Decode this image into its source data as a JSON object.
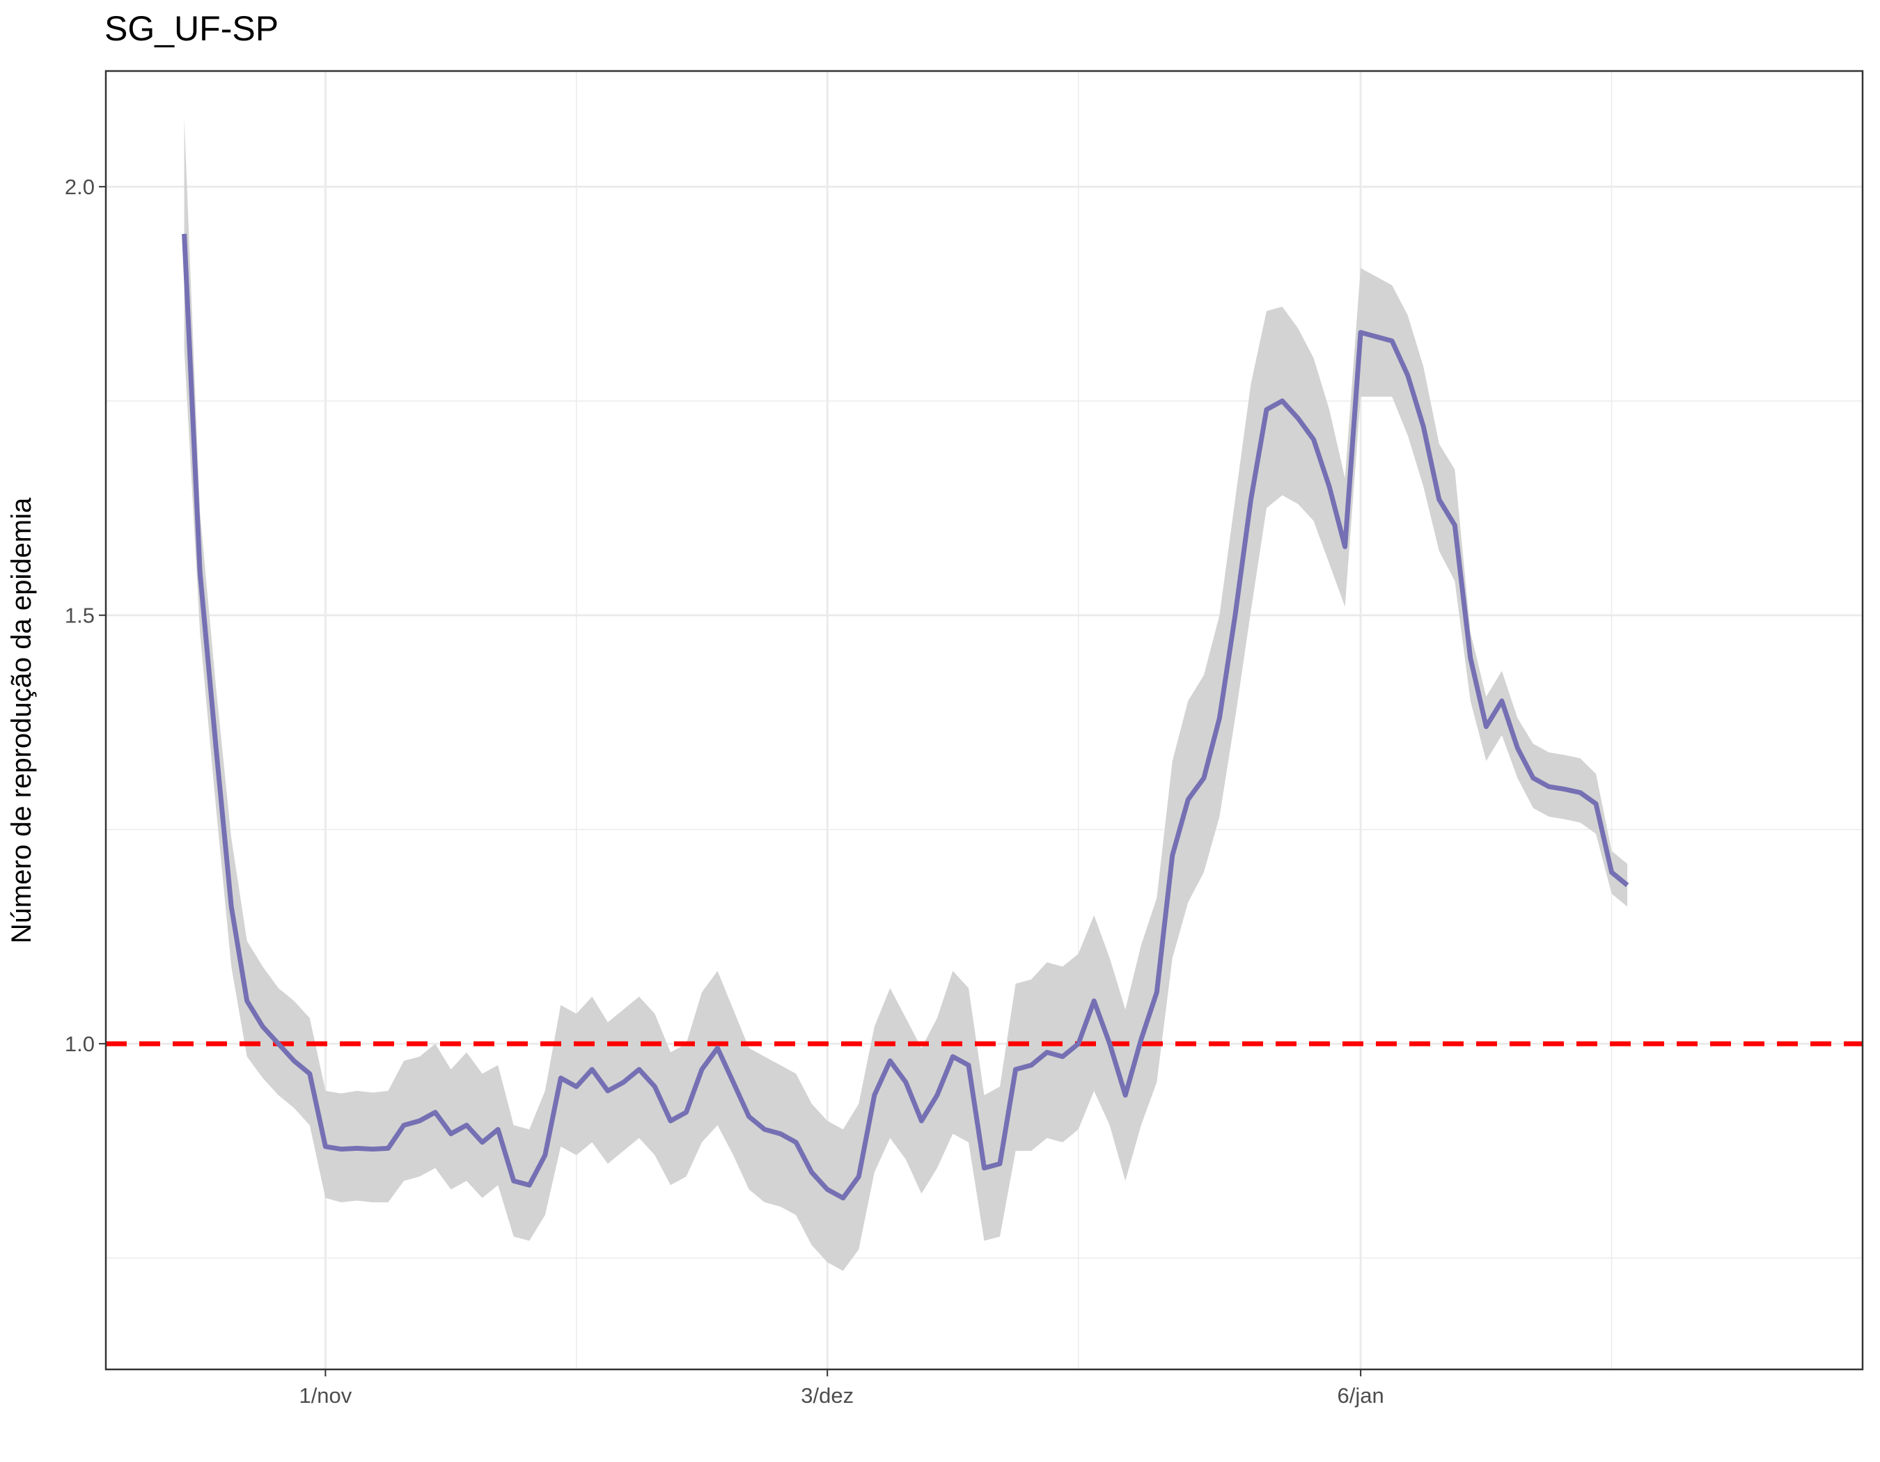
{
  "chart_data": {
    "type": "line",
    "title": "SG_UF-SP",
    "xlabel": "",
    "ylabel": "Número de reprodução da epidemia",
    "x_start": "2020-10-23",
    "x_step_days": 1,
    "xlim": [
      "2020-10-18",
      "2021-02-07"
    ],
    "ylim": [
      0.62,
      2.135
    ],
    "x_ticks": [
      {
        "date": "2020-11-01",
        "label": "1/nov"
      },
      {
        "date": "2020-12-03",
        "label": "3/dez"
      },
      {
        "date": "2021-01-06",
        "label": "6/jan"
      }
    ],
    "x_minor_ticks": [
      "2020-11-17",
      "2020-12-19",
      "2021-01-22"
    ],
    "y_ticks": [
      {
        "value": 1.0,
        "label": "1.0"
      },
      {
        "value": 1.5,
        "label": "1.5"
      },
      {
        "value": 2.0,
        "label": "2.0"
      }
    ],
    "y_minor_ticks": [
      0.75,
      1.25,
      1.75
    ],
    "reference_line": {
      "value": 1.0,
      "color": "#ff0000",
      "style": "dashed"
    },
    "grid": true,
    "series": [
      {
        "color": "#7570b3",
        "values": [
          1.945,
          1.55,
          1.35,
          1.16,
          1.05,
          1.02,
          1.0,
          0.98,
          0.965,
          0.88,
          0.877,
          0.878,
          0.877,
          0.878,
          0.905,
          0.91,
          0.92,
          0.895,
          0.905,
          0.885,
          0.9,
          0.84,
          0.835,
          0.87,
          0.96,
          0.95,
          0.97,
          0.945,
          0.955,
          0.97,
          0.95,
          0.91,
          0.92,
          0.97,
          0.995,
          0.955,
          0.915,
          0.9,
          0.895,
          0.885,
          0.85,
          0.83,
          0.82,
          0.845,
          0.94,
          0.98,
          0.955,
          0.91,
          0.94,
          0.985,
          0.975,
          0.855,
          0.86,
          0.97,
          0.975,
          0.99,
          0.985,
          1.0,
          1.05,
          1.0,
          0.94,
          1.005,
          1.06,
          1.22,
          1.285,
          1.31,
          1.38,
          1.5,
          1.635,
          1.74,
          1.75,
          1.73,
          1.705,
          1.65,
          1.58,
          1.83,
          1.825,
          1.82,
          1.78,
          1.72,
          1.635,
          1.605,
          1.45,
          1.37,
          1.4,
          1.345,
          1.31,
          1.3,
          1.297,
          1.293,
          1.28,
          1.2,
          1.185
        ]
      }
    ],
    "band": {
      "color": "#d3d3d3",
      "upper": [
        2.08,
        1.62,
        1.42,
        1.24,
        1.12,
        1.09,
        1.065,
        1.05,
        1.03,
        0.945,
        0.942,
        0.945,
        0.943,
        0.945,
        0.98,
        0.985,
        1.0,
        0.97,
        0.99,
        0.965,
        0.975,
        0.905,
        0.9,
        0.945,
        1.045,
        1.035,
        1.055,
        1.025,
        1.04,
        1.055,
        1.035,
        0.99,
        1.0,
        1.06,
        1.085,
        1.04,
        0.995,
        0.985,
        0.975,
        0.965,
        0.93,
        0.91,
        0.9,
        0.93,
        1.02,
        1.065,
        1.03,
        0.995,
        1.03,
        1.085,
        1.065,
        0.94,
        0.95,
        1.07,
        1.075,
        1.095,
        1.09,
        1.105,
        1.15,
        1.1,
        1.04,
        1.115,
        1.17,
        1.33,
        1.4,
        1.43,
        1.5,
        1.635,
        1.77,
        1.855,
        1.86,
        1.835,
        1.8,
        1.74,
        1.66,
        1.905,
        1.895,
        1.885,
        1.85,
        1.79,
        1.7,
        1.67,
        1.48,
        1.405,
        1.435,
        1.38,
        1.35,
        1.34,
        1.337,
        1.333,
        1.315,
        1.225,
        1.21
      ],
      "lower": [
        1.81,
        1.48,
        1.28,
        1.09,
        0.985,
        0.96,
        0.94,
        0.925,
        0.905,
        0.82,
        0.815,
        0.817,
        0.815,
        0.815,
        0.84,
        0.845,
        0.855,
        0.83,
        0.84,
        0.82,
        0.835,
        0.775,
        0.77,
        0.8,
        0.88,
        0.87,
        0.885,
        0.86,
        0.875,
        0.89,
        0.87,
        0.835,
        0.845,
        0.885,
        0.905,
        0.87,
        0.83,
        0.815,
        0.81,
        0.8,
        0.765,
        0.745,
        0.735,
        0.76,
        0.85,
        0.89,
        0.865,
        0.825,
        0.855,
        0.895,
        0.885,
        0.77,
        0.775,
        0.875,
        0.875,
        0.89,
        0.885,
        0.9,
        0.945,
        0.905,
        0.84,
        0.905,
        0.955,
        1.1,
        1.165,
        1.2,
        1.265,
        1.38,
        1.505,
        1.625,
        1.64,
        1.63,
        1.61,
        1.56,
        1.51,
        1.755,
        1.755,
        1.755,
        1.71,
        1.65,
        1.575,
        1.54,
        1.4,
        1.33,
        1.36,
        1.31,
        1.275,
        1.265,
        1.262,
        1.258,
        1.245,
        1.175,
        1.16
      ]
    }
  }
}
